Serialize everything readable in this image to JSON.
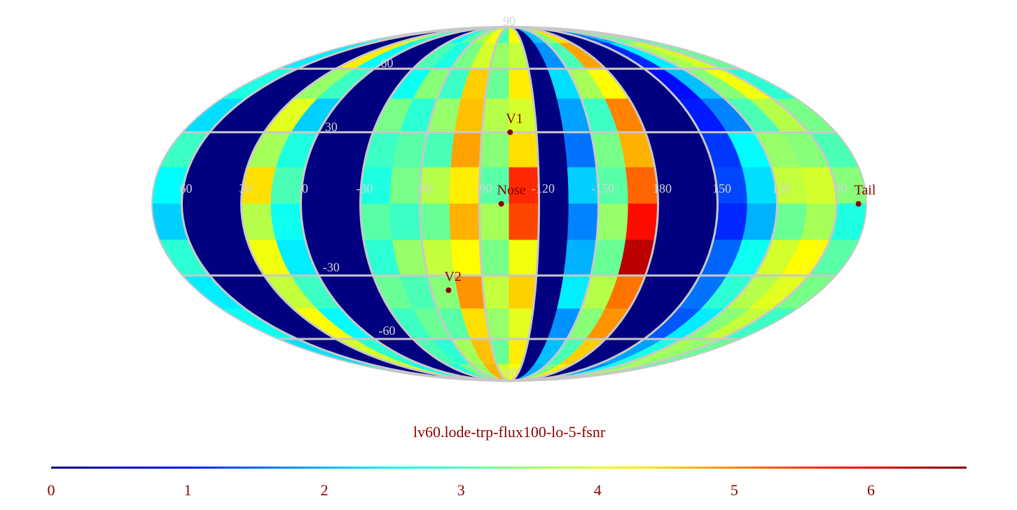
{
  "chart_data": {
    "type": "map",
    "projection": "mollweide",
    "center_lon": -105,
    "title": "lv60.lode-trp-flux100-lo-5-fsnr",
    "colormap": "jet",
    "clim": [
      0,
      6.7
    ],
    "cticks": [
      0,
      1,
      2,
      3,
      4,
      5,
      6
    ],
    "grid": true,
    "grid_color": "#c8c8c8",
    "lon_ticks": [
      60,
      30,
      0,
      -30,
      -60,
      -90,
      -120,
      -150,
      180,
      150,
      120,
      90
    ],
    "lat_ticks": [
      90,
      60,
      30,
      -30,
      -60,
      -90
    ],
    "lon_bins": [
      75,
      60,
      45,
      30,
      15,
      0,
      -15,
      -30,
      -45,
      -60,
      -75,
      -90,
      -105,
      -120,
      -135,
      -150,
      -165,
      -180,
      165,
      150,
      135,
      120,
      105,
      90,
      75
    ],
    "lat_bins": [
      90,
      75,
      60,
      45,
      30,
      15,
      0,
      -15,
      -30,
      -45,
      -60,
      -75,
      -90
    ],
    "values": [
      [
        2.6,
        0,
        0,
        3.9,
        2.8,
        0,
        0,
        2.5,
        3.1,
        3.6,
        4.1,
        3.0,
        4.2,
        0,
        2.1,
        3.4,
        4.4,
        0,
        0,
        1.4,
        2.0,
        3.1,
        3.4,
        2.9
      ],
      [
        2.4,
        0,
        0,
        4.3,
        2.5,
        0,
        0,
        3.0,
        2.7,
        3.3,
        3.9,
        3.5,
        3.8,
        0,
        1.8,
        3.0,
        4.8,
        0,
        0,
        1.1,
        2.4,
        3.6,
        3.9,
        3.2
      ],
      [
        2.7,
        0,
        0,
        3.5,
        2.9,
        0,
        0,
        2.6,
        3.4,
        2.9,
        4.5,
        3.2,
        4.3,
        0,
        2.3,
        3.6,
        4.2,
        0,
        0,
        0.9,
        2.1,
        3.4,
        4.1,
        2.8
      ],
      [
        2.3,
        0,
        0,
        4.0,
        2.2,
        0,
        0,
        3.3,
        2.8,
        3.5,
        4.6,
        3.7,
        3.9,
        0,
        1.9,
        2.9,
        5.0,
        0,
        0,
        1.0,
        1.7,
        3.0,
        3.7,
        3.3
      ],
      [
        2.9,
        0,
        0,
        3.6,
        2.7,
        0,
        0,
        2.9,
        3.1,
        3.0,
        4.8,
        3.4,
        4.4,
        0,
        1.6,
        3.3,
        4.7,
        0,
        0,
        1.2,
        2.5,
        3.5,
        3.4,
        3.0
      ],
      [
        2.5,
        0,
        0,
        4.4,
        3.0,
        0,
        0,
        2.7,
        3.3,
        3.7,
        4.3,
        3.1,
        5.6,
        0,
        2.2,
        3.1,
        5.2,
        0,
        0,
        1.3,
        2.3,
        3.8,
        3.9,
        3.4
      ],
      [
        2.2,
        0,
        0,
        3.7,
        2.6,
        0,
        0,
        3.1,
        2.9,
        3.2,
        4.7,
        3.6,
        5.4,
        0,
        1.7,
        3.5,
        5.8,
        0,
        0,
        1.1,
        2.0,
        3.2,
        3.6,
        2.7
      ],
      [
        2.8,
        0,
        0,
        4.1,
        2.4,
        0,
        0,
        2.8,
        3.5,
        3.8,
        4.2,
        3.3,
        4.1,
        0,
        2.0,
        3.2,
        6.3,
        0,
        0,
        1.5,
        2.6,
        3.9,
        4.2,
        3.1
      ],
      [
        2.4,
        0,
        0,
        3.8,
        2.9,
        0,
        0,
        3.2,
        3.0,
        3.4,
        4.9,
        3.8,
        4.5,
        0,
        2.4,
        3.7,
        5.1,
        0,
        0,
        1.6,
        2.8,
        3.7,
        4.0,
        3.3
      ],
      [
        2.6,
        0,
        0,
        4.2,
        2.5,
        0,
        0,
        2.9,
        3.2,
        3.1,
        4.4,
        3.5,
        4.0,
        0,
        1.8,
        3.4,
        4.9,
        0,
        0,
        1.4,
        2.4,
        3.4,
        3.8,
        2.9
      ],
      [
        2.3,
        0,
        0,
        3.9,
        2.8,
        0,
        0,
        3.0,
        2.8,
        3.6,
        4.6,
        3.2,
        4.3,
        0,
        2.1,
        3.0,
        4.5,
        0,
        0,
        1.9,
        2.7,
        3.6,
        3.5,
        3.2
      ],
      [
        2.7,
        0,
        0,
        4.0,
        2.6,
        0,
        0,
        2.7,
        3.3,
        3.5,
        4.7,
        3.9,
        4.1,
        0,
        2.0,
        3.3,
        4.3,
        0,
        0,
        1.7,
        2.5,
        3.3,
        3.7,
        3.0
      ]
    ],
    "point_color": "#8b0000",
    "points": [
      {
        "name": "V1",
        "lon": -105.5,
        "lat": 30
      },
      {
        "name": "Nose",
        "lon": -101,
        "lat": 0
      },
      {
        "name": "V2",
        "lon": -70,
        "lat": -36.5
      },
      {
        "name": "Tail",
        "lon": 79,
        "lat": 0
      }
    ]
  }
}
